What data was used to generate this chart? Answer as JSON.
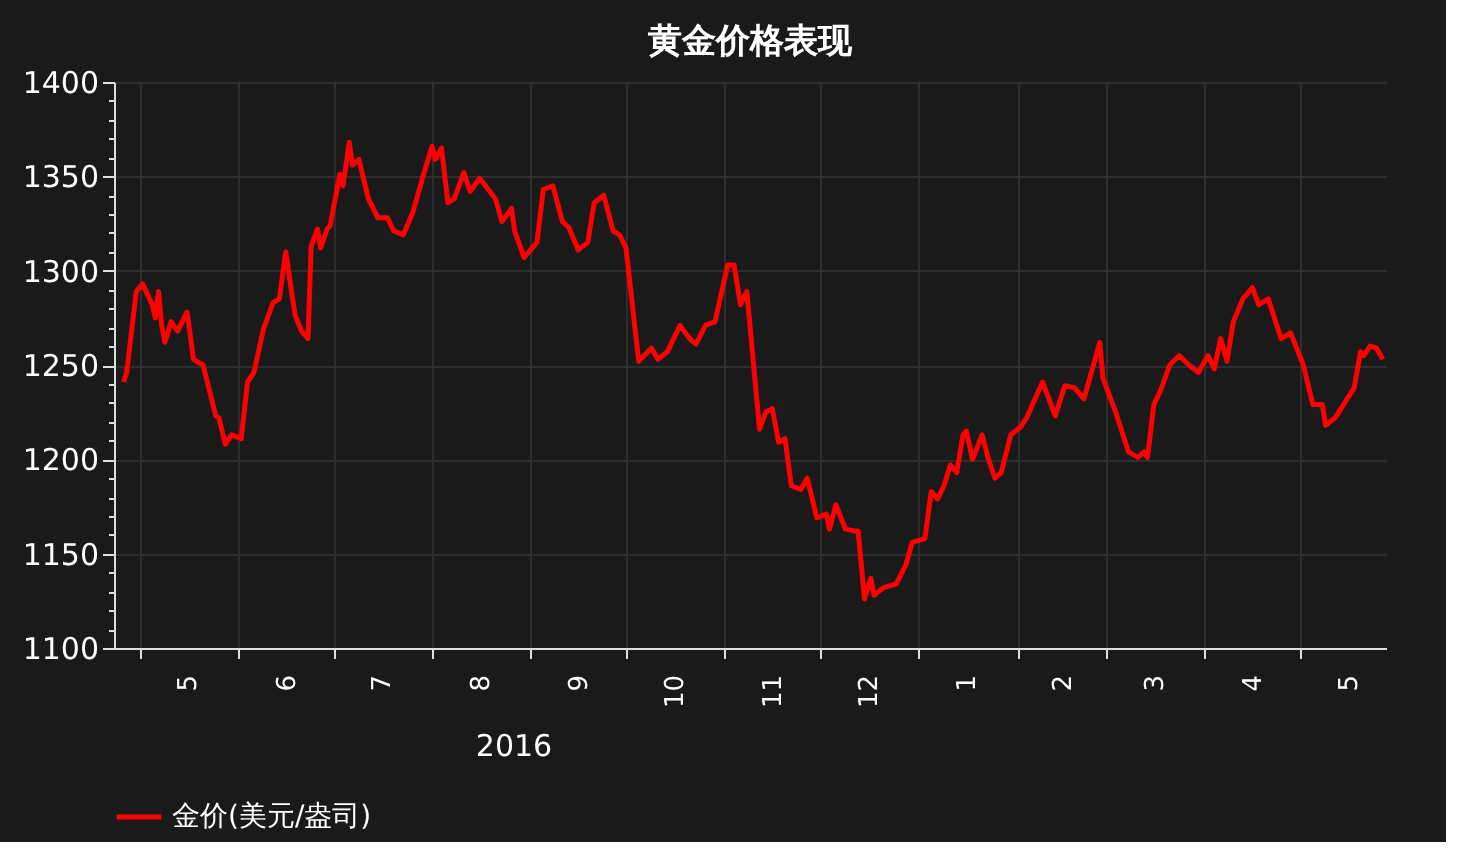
{
  "chart_data": {
    "type": "line",
    "title": "黄金价格表现",
    "x": [
      "2016-04-26",
      "2016-04-27",
      "2016-04-30",
      "2016-05-02",
      "2016-05-05",
      "2016-05-06",
      "2016-05-07",
      "2016-05-08",
      "2016-05-09",
      "2016-05-11",
      "2016-05-13",
      "2016-05-16",
      "2016-05-18",
      "2016-05-21",
      "2016-05-25",
      "2016-05-26",
      "2016-05-28",
      "2016-05-30",
      "2016-06-02",
      "2016-06-04",
      "2016-06-06",
      "2016-06-09",
      "2016-06-12",
      "2016-06-14",
      "2016-06-16",
      "2016-06-18",
      "2016-06-19",
      "2016-06-21",
      "2016-06-23",
      "2016-06-24",
      "2016-06-26",
      "2016-06-27",
      "2016-06-29",
      "2016-06-30",
      "2016-07-03",
      "2016-07-04",
      "2016-07-06",
      "2016-07-07",
      "2016-07-09",
      "2016-07-12",
      "2016-07-15",
      "2016-07-18",
      "2016-07-20",
      "2016-07-23",
      "2016-07-26",
      "2016-07-29",
      "2016-08-01",
      "2016-08-02",
      "2016-08-04",
      "2016-08-06",
      "2016-08-08",
      "2016-08-11",
      "2016-08-13",
      "2016-08-16",
      "2016-08-21",
      "2016-08-23",
      "2016-08-26",
      "2016-08-27",
      "2016-08-30",
      "2016-09-03",
      "2016-09-05",
      "2016-09-08",
      "2016-09-11",
      "2016-09-13",
      "2016-09-16",
      "2016-09-19",
      "2016-09-21",
      "2016-09-24",
      "2016-09-27",
      "2016-09-29",
      "2016-10-01",
      "2016-10-03",
      "2016-10-05",
      "2016-10-09",
      "2016-10-11",
      "2016-10-14",
      "2016-10-18",
      "2016-10-21",
      "2016-10-23",
      "2016-10-26",
      "2016-10-29",
      "2016-11-02",
      "2016-11-04",
      "2016-11-06",
      "2016-11-08",
      "2016-11-12",
      "2016-11-14",
      "2016-11-16",
      "2016-11-18",
      "2016-11-20",
      "2016-11-22",
      "2016-11-25",
      "2016-11-27",
      "2016-11-30",
      "2016-12-03",
      "2016-12-04",
      "2016-12-06",
      "2016-12-09",
      "2016-12-12",
      "2016-12-13",
      "2016-12-15",
      "2016-12-17",
      "2016-12-18",
      "2016-12-21",
      "2016-12-25",
      "2016-12-28",
      "2016-12-30",
      "2017-01-03",
      "2017-01-05",
      "2017-01-07",
      "2017-01-09",
      "2017-01-11",
      "2017-01-13",
      "2017-01-15",
      "2017-01-16",
      "2017-01-18",
      "2017-01-21",
      "2017-01-23",
      "2017-01-25",
      "2017-01-27",
      "2017-01-30",
      "2017-02-02",
      "2017-02-04",
      "2017-02-09",
      "2017-02-13",
      "2017-02-16",
      "2017-02-19",
      "2017-02-22",
      "2017-02-27",
      "2017-02-28",
      "2017-03-04",
      "2017-03-08",
      "2017-03-11",
      "2017-03-13",
      "2017-03-14",
      "2017-03-16",
      "2017-03-18",
      "2017-03-21",
      "2017-03-24",
      "2017-03-27",
      "2017-03-30",
      "2017-04-02",
      "2017-04-04",
      "2017-04-06",
      "2017-04-08",
      "2017-04-10",
      "2017-04-13",
      "2017-04-16",
      "2017-04-18",
      "2017-04-21",
      "2017-04-25",
      "2017-04-28",
      "2017-05-02",
      "2017-05-05",
      "2017-05-08",
      "2017-05-09",
      "2017-05-12",
      "2017-05-18",
      "2017-05-20",
      "2017-05-21",
      "2017-05-23",
      "2017-05-25",
      "2017-05-27"
    ],
    "series": [
      {
        "name": "金价(美元/盎司)",
        "color": "#ff0000",
        "values": [
          1241,
          1246,
          1289,
          1293,
          1282,
          1275,
          1289,
          1271,
          1262,
          1273,
          1268,
          1278,
          1253,
          1250,
          1223,
          1222,
          1208,
          1213,
          1211,
          1241,
          1246,
          1269,
          1283,
          1285,
          1310,
          1287,
          1276,
          1268,
          1264,
          1313,
          1322,
          1312,
          1322,
          1324,
          1351,
          1345,
          1368,
          1356,
          1359,
          1338,
          1328,
          1328,
          1321,
          1319,
          1331,
          1349,
          1366,
          1359,
          1365,
          1336,
          1338,
          1352,
          1342,
          1349,
          1338,
          1326,
          1333,
          1321,
          1307,
          1315,
          1343,
          1345,
          1326,
          1323,
          1311,
          1315,
          1336,
          1340,
          1321,
          1319,
          1312,
          1282,
          1252,
          1259,
          1253,
          1257,
          1271,
          1264,
          1261,
          1271,
          1273,
          1303,
          1303,
          1282,
          1289,
          1216,
          1225,
          1227,
          1209,
          1211,
          1186,
          1184,
          1190,
          1169,
          1171,
          1163,
          1176,
          1163,
          1162,
          1162,
          1126,
          1137,
          1128,
          1132,
          1134,
          1144,
          1156,
          1158,
          1183,
          1179,
          1186,
          1197,
          1193,
          1213,
          1215,
          1200,
          1213,
          1200,
          1190,
          1193,
          1213,
          1217,
          1222,
          1241,
          1223,
          1239,
          1238,
          1232,
          1262,
          1243,
          1225,
          1204,
          1201,
          1204,
          1201,
          1229,
          1236,
          1250,
          1255,
          1250,
          1246,
          1255,
          1248,
          1264,
          1252,
          1273,
          1285,
          1291,
          1282,
          1285,
          1264,
          1267,
          1250,
          1229,
          1229,
          1218,
          1222,
          1238,
          1257,
          1255,
          1260,
          1259,
          1253
        ]
      }
    ],
    "xlim": [
      "2016-04-23",
      "2017-05-28"
    ],
    "xticks": [
      {
        "value": "2016-05-01",
        "label": null
      },
      {
        "value": "2016-05-16",
        "label": "5"
      },
      {
        "value": "2016-06-01",
        "label": null
      },
      {
        "value": "2016-06-16",
        "label": "6"
      },
      {
        "value": "2016-07-01",
        "label": null
      },
      {
        "value": "2016-07-16",
        "label": "7"
      },
      {
        "value": "2016-08-01",
        "label": null
      },
      {
        "value": "2016-08-16",
        "label": "8"
      },
      {
        "value": "2016-09-01",
        "label": null
      },
      {
        "value": "2016-09-16",
        "label": "9"
      },
      {
        "value": "2016-10-01",
        "label": null
      },
      {
        "value": "2016-10-16",
        "label": "10"
      },
      {
        "value": "2016-11-01",
        "label": null
      },
      {
        "value": "2016-11-16",
        "label": "11"
      },
      {
        "value": "2016-12-01",
        "label": null
      },
      {
        "value": "2016-12-16",
        "label": "12"
      },
      {
        "value": "2017-01-01",
        "label": null
      },
      {
        "value": "2017-01-16",
        "label": "1"
      },
      {
        "value": "2017-02-01",
        "label": null
      },
      {
        "value": "2017-02-15",
        "label": "2"
      },
      {
        "value": "2017-03-01",
        "label": null
      },
      {
        "value": "2017-03-16",
        "label": "3"
      },
      {
        "value": "2017-04-01",
        "label": null
      },
      {
        "value": "2017-04-16",
        "label": "4"
      },
      {
        "value": "2017-05-01",
        "label": null
      },
      {
        "value": "2017-05-16",
        "label": "5"
      }
    ],
    "ylim": [
      1100,
      1400
    ],
    "yticks": [
      1100,
      {
        "value": 1110,
        "label": null
      },
      {
        "value": 1120,
        "label": null
      },
      {
        "value": 1130,
        "label": null
      },
      {
        "value": 1140,
        "label": null
      },
      1150,
      {
        "value": 1160,
        "label": null
      },
      {
        "value": 1170,
        "label": null
      },
      {
        "value": 1180,
        "label": null
      },
      {
        "value": 1190,
        "label": null
      },
      1200,
      {
        "value": 1210,
        "label": null
      },
      {
        "value": 1220,
        "label": null
      },
      {
        "value": 1230,
        "label": null
      },
      {
        "value": 1240,
        "label": null
      },
      1250,
      {
        "value": 1260,
        "label": null
      },
      {
        "value": 1270,
        "label": null
      },
      {
        "value": 1280,
        "label": null
      },
      {
        "value": 1290,
        "label": null
      },
      1300,
      {
        "value": 1310,
        "label": null
      },
      {
        "value": 1320,
        "label": null
      },
      {
        "value": 1330,
        "label": null
      },
      {
        "value": 1340,
        "label": null
      },
      1350,
      {
        "value": 1360,
        "label": null
      },
      {
        "value": 1370,
        "label": null
      },
      {
        "value": 1380,
        "label": null
      },
      {
        "value": 1390,
        "label": null
      },
      1400
    ],
    "annotations": [
      "2016"
    ],
    "grid": true,
    "legend": "bottom left",
    "marker": "none",
    "line_style": "solid"
  }
}
